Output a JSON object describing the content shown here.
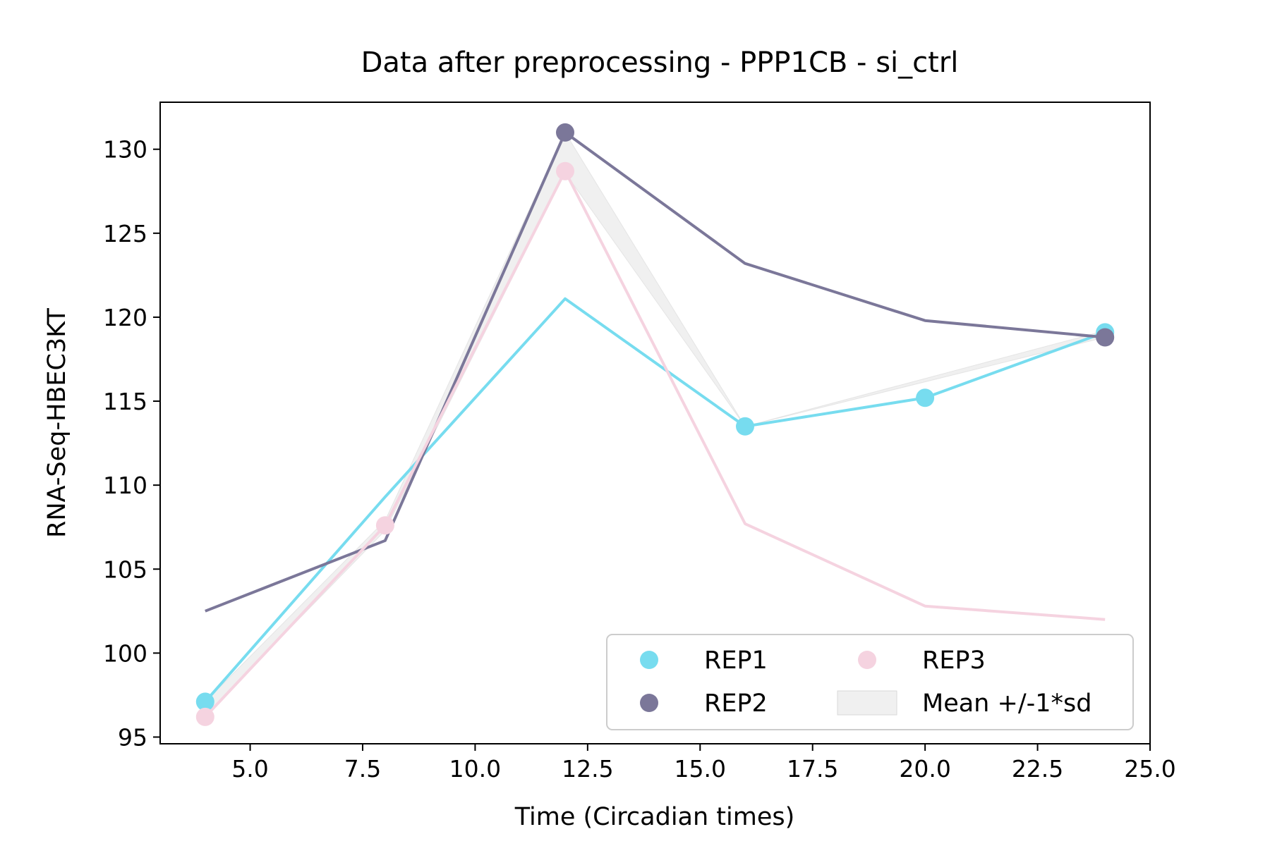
{
  "chart_data": {
    "type": "line",
    "title": "Data after preprocessing - PPP1CB - si_ctrl",
    "xlabel": "Time (Circadian times)",
    "ylabel": "RNA-Seq-HBEC3KT",
    "xlim": [
      3.0,
      25.0
    ],
    "ylim": [
      94.6,
      132.8
    ],
    "x_ticks": [
      "5.0",
      "7.5",
      "10.0",
      "12.5",
      "15.0",
      "17.5",
      "20.0",
      "22.5",
      "25.0"
    ],
    "y_ticks": [
      "95",
      "100",
      "105",
      "110",
      "115",
      "120",
      "125",
      "130"
    ],
    "grid": false,
    "legend_position": "lower-right",
    "legend_columns": 2,
    "series": [
      {
        "name": "REP1",
        "color": "#77dcef",
        "line": [
          [
            4,
            97.1
          ],
          [
            8,
            109.3
          ],
          [
            12,
            121.1
          ],
          [
            16,
            113.5
          ],
          [
            20,
            115.2
          ],
          [
            24,
            119.1
          ]
        ],
        "markers": [
          [
            4,
            97.1
          ],
          [
            16,
            113.5
          ],
          [
            20,
            115.2
          ],
          [
            24,
            119.1
          ]
        ]
      },
      {
        "name": "REP2",
        "color": "#7b7799",
        "line": [
          [
            4,
            102.5
          ],
          [
            8,
            106.7
          ],
          [
            12,
            131.0
          ],
          [
            16,
            123.2
          ],
          [
            20,
            119.8
          ],
          [
            24,
            118.8
          ]
        ],
        "markers": [
          [
            12,
            131.0
          ],
          [
            24,
            118.8
          ]
        ]
      },
      {
        "name": "REP3",
        "color": "#f5d3e0",
        "line": [
          [
            4,
            96.2
          ],
          [
            8,
            107.6
          ],
          [
            12,
            128.7
          ],
          [
            16,
            107.7
          ],
          [
            20,
            102.8
          ],
          [
            24,
            102.0
          ]
        ],
        "markers": [
          [
            4,
            96.2
          ],
          [
            8,
            107.6
          ],
          [
            12,
            128.7
          ]
        ]
      }
    ],
    "band": {
      "name": "Mean +/-1*sd",
      "color": "#d9d9d9",
      "x": [
        4,
        8,
        12,
        16,
        24
      ],
      "lower": [
        96.3,
        107.3,
        128.6,
        113.5,
        118.8
      ],
      "upper": [
        97.1,
        107.9,
        131.0,
        113.5,
        119.2
      ]
    }
  }
}
